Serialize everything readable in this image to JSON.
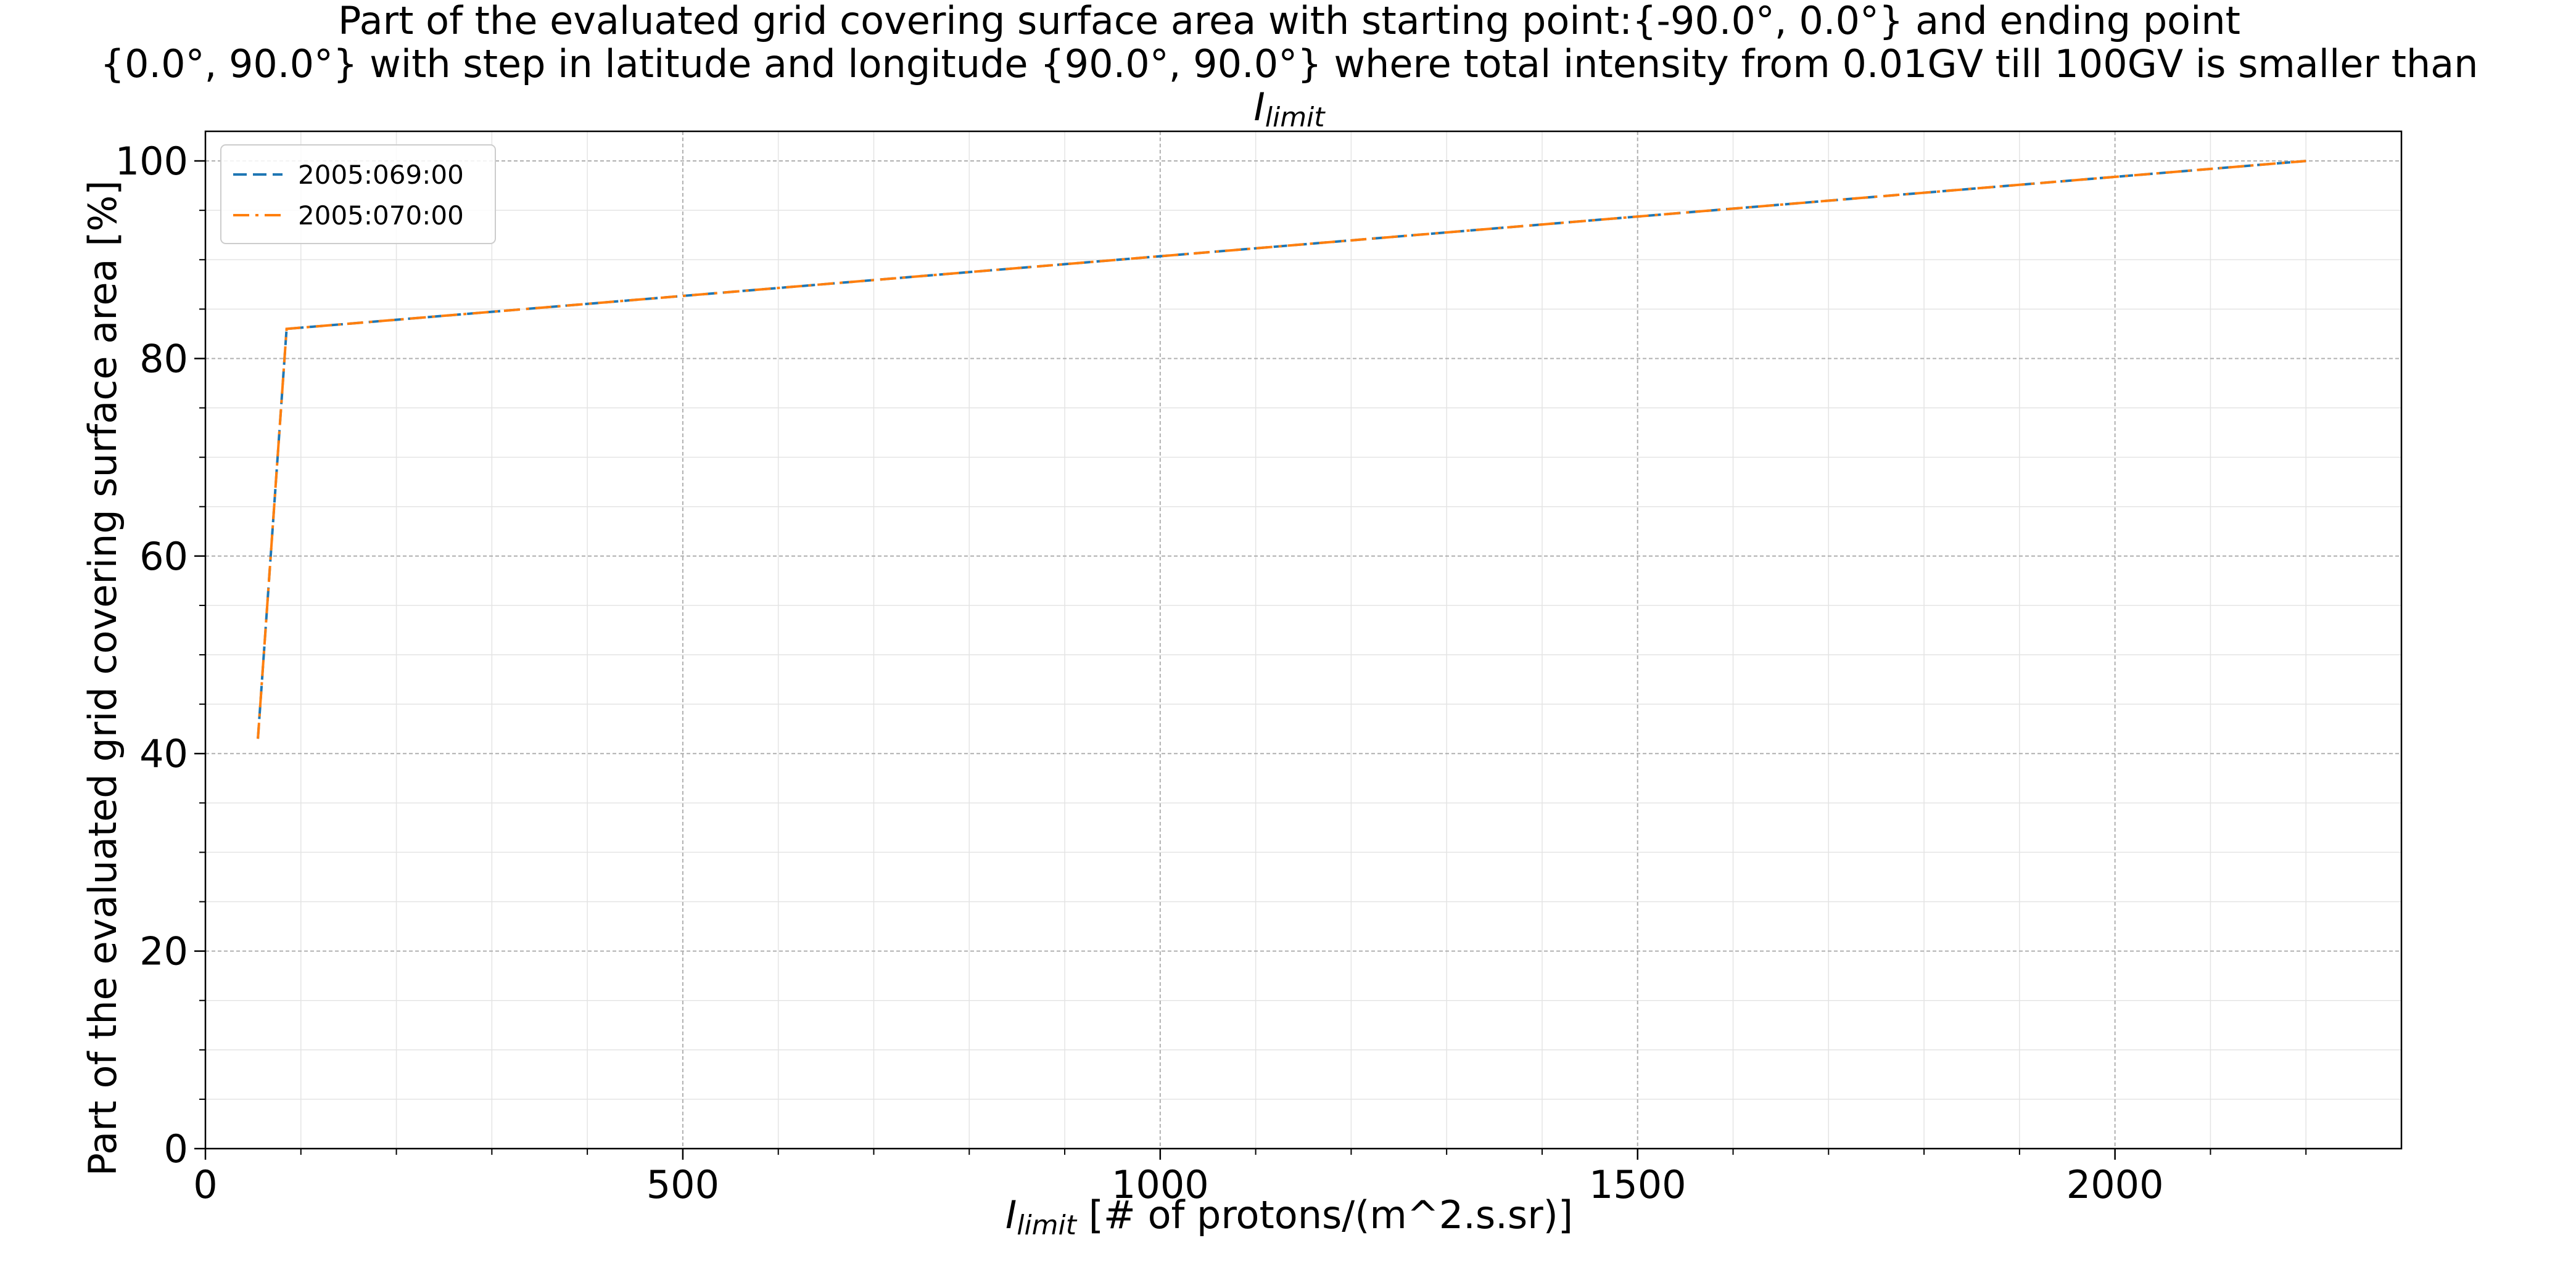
{
  "chart_data": {
    "type": "line",
    "title_lines": [
      "Part of the evaluated grid covering surface area with starting point:{-90.0°, 0.0°} and ending point",
      "{0.0°, 90.0°} with step in latitude and longitude {90.0°, 90.0°} where total intensity from 0.01GV till 100GV is smaller than"
    ],
    "title_symbol": {
      "main": "I",
      "sub": "limit"
    },
    "xlabel": {
      "symbol": "I",
      "sub": "limit",
      "rest": " [# of protons/(m^2.s.sr)]"
    },
    "ylabel": "Part of the evaluated grid covering surface area  [%]",
    "xlim": [
      0,
      2300
    ],
    "ylim": [
      0,
      103
    ],
    "xticks": [
      0,
      500,
      1000,
      1500,
      2000
    ],
    "yticks": [
      0,
      20,
      40,
      60,
      80,
      100
    ],
    "xtick_labels": [
      "0",
      "500",
      "1000",
      "1500",
      "2000"
    ],
    "ytick_labels": [
      "0",
      "20",
      "40",
      "60",
      "80",
      "100"
    ],
    "grid": true,
    "legend_position": "top-left",
    "series": [
      {
        "name": "2005:069:00",
        "color": "#1f77b4",
        "style": "dashed",
        "x": [
          55,
          85,
          2200
        ],
        "y": [
          41.5,
          83,
          100
        ]
      },
      {
        "name": "2005:070:00",
        "color": "#ff7f0e",
        "style": "dashdot",
        "x": [
          55,
          85,
          2200
        ],
        "y": [
          41.5,
          83,
          100
        ]
      }
    ]
  }
}
